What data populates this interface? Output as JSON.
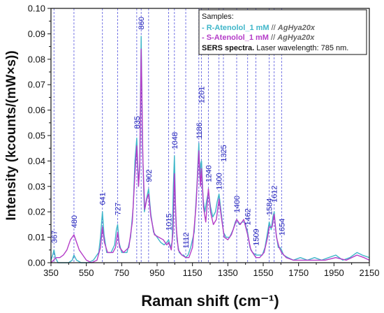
{
  "chart_data": {
    "type": "line",
    "xlabel": "Raman shift (cm⁻¹)",
    "ylabel": "Intensity (kcounts/(mW×s))",
    "xlim": [
      350,
      2150
    ],
    "ylim": [
      0,
      0.1
    ],
    "x_ticks": [
      "350",
      "550",
      "750",
      "950",
      "1150",
      "1350",
      "1550",
      "1750",
      "1950",
      "2150"
    ],
    "y_ticks": [
      "0.00",
      "0.01",
      "0.02",
      "0.03",
      "0.04",
      "0.05",
      "0.06",
      "0.07",
      "0.08",
      "0.09",
      "0.10"
    ],
    "peaks": [
      {
        "x": 367,
        "label": "367",
        "y": 0.006
      },
      {
        "x": 480,
        "label": "480",
        "y": 0.012
      },
      {
        "x": 641,
        "label": "641",
        "y": 0.021
      },
      {
        "x": 727,
        "label": "727",
        "y": 0.017
      },
      {
        "x": 835,
        "label": "835",
        "y": 0.051
      },
      {
        "x": 860,
        "label": "860",
        "y": 0.09
      },
      {
        "x": 902,
        "label": "902",
        "y": 0.03
      },
      {
        "x": 1015,
        "label": "1015",
        "y": 0.011
      },
      {
        "x": 1048,
        "label": "1048",
        "y": 0.043
      },
      {
        "x": 1112,
        "label": "1112",
        "y": 0.004
      },
      {
        "x": 1186,
        "label": "1186",
        "y": 0.047
      },
      {
        "x": 1201,
        "label": "1201",
        "y": 0.061
      },
      {
        "x": 1240,
        "label": "1240",
        "y": 0.03
      },
      {
        "x": 1300,
        "label": "1300",
        "y": 0.027
      },
      {
        "x": 1325,
        "label": "1325",
        "y": 0.038
      },
      {
        "x": 1400,
        "label": "1400",
        "y": 0.018
      },
      {
        "x": 1462,
        "label": "1462",
        "y": 0.013
      },
      {
        "x": 1509,
        "label": "1509",
        "y": 0.005
      },
      {
        "x": 1584,
        "label": "1584",
        "y": 0.017
      },
      {
        "x": 1612,
        "label": "1612",
        "y": 0.022
      },
      {
        "x": 1654,
        "label": "1654",
        "y": 0.009
      }
    ],
    "series": [
      {
        "name": "R-Atenolol_1 mM",
        "color": "#3fb6c9",
        "points": [
          [
            350,
            0.001
          ],
          [
            360,
            0.003
          ],
          [
            367,
            0.005
          ],
          [
            375,
            0.002
          ],
          [
            390,
            0.0
          ],
          [
            420,
            0.0
          ],
          [
            450,
            0.0
          ],
          [
            470,
            0.001
          ],
          [
            480,
            0.003
          ],
          [
            495,
            0.001
          ],
          [
            520,
            0.0
          ],
          [
            560,
            0.0
          ],
          [
            590,
            0.001
          ],
          [
            620,
            0.004
          ],
          [
            630,
            0.01
          ],
          [
            641,
            0.02
          ],
          [
            650,
            0.011
          ],
          [
            665,
            0.004
          ],
          [
            690,
            0.004
          ],
          [
            710,
            0.007
          ],
          [
            720,
            0.013
          ],
          [
            727,
            0.015
          ],
          [
            735,
            0.008
          ],
          [
            750,
            0.004
          ],
          [
            780,
            0.004
          ],
          [
            800,
            0.01
          ],
          [
            815,
            0.022
          ],
          [
            825,
            0.04
          ],
          [
            835,
            0.049
          ],
          [
            845,
            0.03
          ],
          [
            852,
            0.04
          ],
          [
            860,
            0.089
          ],
          [
            868,
            0.045
          ],
          [
            878,
            0.02
          ],
          [
            890,
            0.025
          ],
          [
            902,
            0.029
          ],
          [
            915,
            0.019
          ],
          [
            930,
            0.012
          ],
          [
            950,
            0.01
          ],
          [
            970,
            0.008
          ],
          [
            990,
            0.007
          ],
          [
            1005,
            0.008
          ],
          [
            1015,
            0.009
          ],
          [
            1025,
            0.006
          ],
          [
            1035,
            0.008
          ],
          [
            1042,
            0.03
          ],
          [
            1048,
            0.042
          ],
          [
            1055,
            0.02
          ],
          [
            1062,
            0.009
          ],
          [
            1075,
            0.004
          ],
          [
            1090,
            0.003
          ],
          [
            1100,
            0.003
          ],
          [
            1112,
            0.002
          ],
          [
            1125,
            0.003
          ],
          [
            1140,
            0.006
          ],
          [
            1160,
            0.012
          ],
          [
            1175,
            0.03
          ],
          [
            1186,
            0.047
          ],
          [
            1192,
            0.033
          ],
          [
            1197,
            0.039
          ],
          [
            1201,
            0.04
          ],
          [
            1210,
            0.025
          ],
          [
            1220,
            0.02
          ],
          [
            1232,
            0.025
          ],
          [
            1240,
            0.028
          ],
          [
            1252,
            0.022
          ],
          [
            1265,
            0.018
          ],
          [
            1280,
            0.02
          ],
          [
            1290,
            0.024
          ],
          [
            1300,
            0.027
          ],
          [
            1312,
            0.02
          ],
          [
            1325,
            0.012
          ],
          [
            1340,
            0.01
          ],
          [
            1360,
            0.01
          ],
          [
            1380,
            0.013
          ],
          [
            1392,
            0.016
          ],
          [
            1400,
            0.017
          ],
          [
            1415,
            0.015
          ],
          [
            1430,
            0.016
          ],
          [
            1445,
            0.016
          ],
          [
            1462,
            0.012
          ],
          [
            1475,
            0.006
          ],
          [
            1490,
            0.004
          ],
          [
            1509,
            0.003
          ],
          [
            1525,
            0.003
          ],
          [
            1545,
            0.003
          ],
          [
            1560,
            0.006
          ],
          [
            1575,
            0.012
          ],
          [
            1584,
            0.016
          ],
          [
            1595,
            0.013
          ],
          [
            1605,
            0.018
          ],
          [
            1612,
            0.02
          ],
          [
            1622,
            0.012
          ],
          [
            1635,
            0.006
          ],
          [
            1645,
            0.006
          ],
          [
            1654,
            0.005
          ],
          [
            1665,
            0.003
          ],
          [
            1690,
            0.002
          ],
          [
            1720,
            0.001
          ],
          [
            1760,
            0.002
          ],
          [
            1800,
            0.001
          ],
          [
            1840,
            0.002
          ],
          [
            1880,
            0.001
          ],
          [
            1920,
            0.002
          ],
          [
            1960,
            0.003
          ],
          [
            2000,
            0.001
          ],
          [
            2040,
            0.002
          ],
          [
            2080,
            0.004
          ],
          [
            2110,
            0.003
          ],
          [
            2150,
            0.002
          ]
        ]
      },
      {
        "name": "S-Atenolol_1 mM",
        "color": "#b43cc8",
        "points": [
          [
            350,
            0.0
          ],
          [
            380,
            0.002
          ],
          [
            400,
            0.002
          ],
          [
            420,
            0.003
          ],
          [
            440,
            0.005
          ],
          [
            460,
            0.009
          ],
          [
            480,
            0.011
          ],
          [
            495,
            0.008
          ],
          [
            510,
            0.005
          ],
          [
            530,
            0.003
          ],
          [
            550,
            0.001
          ],
          [
            580,
            0.0
          ],
          [
            610,
            0.001
          ],
          [
            630,
            0.006
          ],
          [
            641,
            0.014
          ],
          [
            652,
            0.008
          ],
          [
            670,
            0.004
          ],
          [
            700,
            0.004
          ],
          [
            715,
            0.006
          ],
          [
            727,
            0.012
          ],
          [
            738,
            0.006
          ],
          [
            760,
            0.004
          ],
          [
            790,
            0.006
          ],
          [
            810,
            0.016
          ],
          [
            825,
            0.035
          ],
          [
            835,
            0.046
          ],
          [
            845,
            0.03
          ],
          [
            852,
            0.038
          ],
          [
            860,
            0.084
          ],
          [
            870,
            0.04
          ],
          [
            880,
            0.021
          ],
          [
            892,
            0.025
          ],
          [
            902,
            0.027
          ],
          [
            915,
            0.018
          ],
          [
            935,
            0.011
          ],
          [
            960,
            0.01
          ],
          [
            985,
            0.009
          ],
          [
            1005,
            0.007
          ],
          [
            1015,
            0.008
          ],
          [
            1030,
            0.005
          ],
          [
            1040,
            0.012
          ],
          [
            1048,
            0.035
          ],
          [
            1058,
            0.014
          ],
          [
            1070,
            0.005
          ],
          [
            1090,
            0.003
          ],
          [
            1112,
            0.002
          ],
          [
            1130,
            0.002
          ],
          [
            1150,
            0.006
          ],
          [
            1170,
            0.022
          ],
          [
            1186,
            0.044
          ],
          [
            1195,
            0.03
          ],
          [
            1201,
            0.037
          ],
          [
            1212,
            0.022
          ],
          [
            1225,
            0.016
          ],
          [
            1240,
            0.029
          ],
          [
            1252,
            0.02
          ],
          [
            1268,
            0.015
          ],
          [
            1285,
            0.017
          ],
          [
            1300,
            0.025
          ],
          [
            1315,
            0.017
          ],
          [
            1330,
            0.01
          ],
          [
            1350,
            0.009
          ],
          [
            1370,
            0.011
          ],
          [
            1390,
            0.015
          ],
          [
            1400,
            0.017
          ],
          [
            1420,
            0.015
          ],
          [
            1440,
            0.017
          ],
          [
            1462,
            0.011
          ],
          [
            1480,
            0.005
          ],
          [
            1509,
            0.002
          ],
          [
            1530,
            0.002
          ],
          [
            1555,
            0.004
          ],
          [
            1575,
            0.01
          ],
          [
            1584,
            0.014
          ],
          [
            1600,
            0.014
          ],
          [
            1612,
            0.019
          ],
          [
            1625,
            0.01
          ],
          [
            1640,
            0.006
          ],
          [
            1654,
            0.004
          ],
          [
            1680,
            0.002
          ],
          [
            1720,
            0.001
          ],
          [
            1780,
            0.001
          ],
          [
            1840,
            0.001
          ],
          [
            1900,
            0.001
          ],
          [
            1960,
            0.002
          ],
          [
            2020,
            0.001
          ],
          [
            2080,
            0.003
          ],
          [
            2120,
            0.002
          ],
          [
            2150,
            0.001
          ]
        ]
      }
    ],
    "legend": {
      "placement": "top-right",
      "title": "Samples:",
      "entries": [
        {
          "prefix": "- R-Atenolol_1 mM",
          "sep": " // ",
          "substrate": "AgHya20x",
          "color": "#3fb6c9"
        },
        {
          "prefix": "- S-Atenolol_1 mM",
          "sep": " // ",
          "substrate": "AgHya20x",
          "color": "#b43cc8"
        }
      ],
      "footer_bold": "SERS spectra.",
      "footer_rest": " Laser wavelength: 785 nm."
    }
  }
}
